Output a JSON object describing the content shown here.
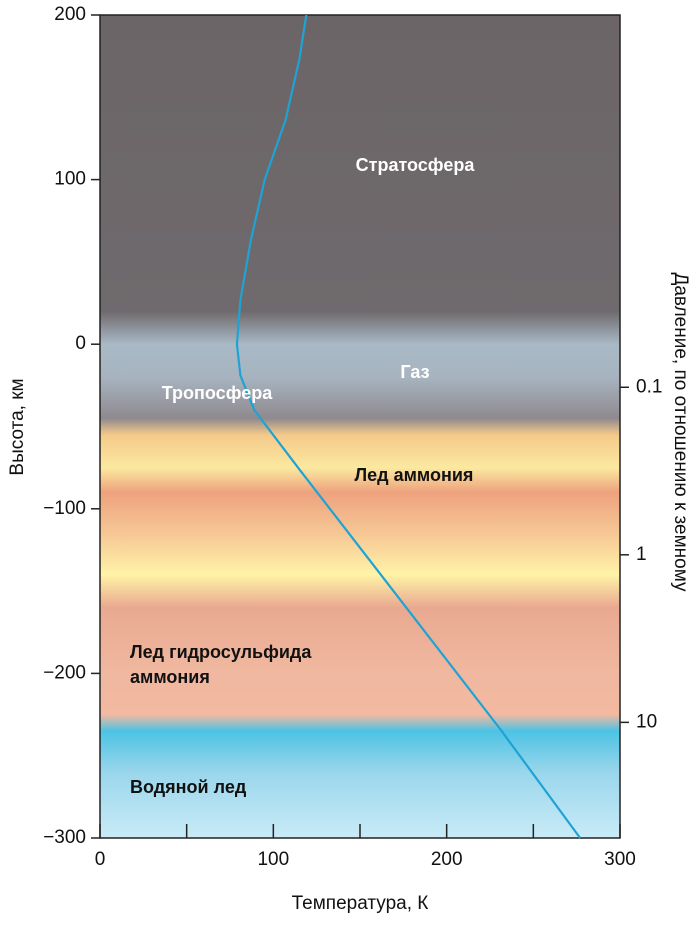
{
  "chart_data": {
    "type": "line",
    "xlabel": "Температура, К",
    "ylabel": "Высота, км",
    "y2label": "Давление, по отношению к земному",
    "x": [
      119,
      115,
      107,
      95,
      87,
      81,
      79,
      81,
      89,
      115,
      173,
      231,
      277
    ],
    "series": [
      {
        "color": "#1ea3d4",
        "values": [
          200,
          173,
          136,
          100,
          63,
          27,
          0,
          -19,
          -40,
          -76,
          -155,
          -234,
          -300
        ]
      }
    ],
    "xlim": [
      0,
      300
    ],
    "xticks": [
      0,
      100,
      200,
      300
    ],
    "xminorticks": [
      50,
      150,
      250
    ],
    "ylim": [
      -300,
      200
    ],
    "yticks": [
      200,
      100,
      0,
      {
        "value": -100,
        "label": "−100"
      },
      {
        "value": -200,
        "label": "−200"
      },
      {
        "value": -300,
        "label": "−300"
      }
    ],
    "y2lim": [
      49,
      0.0006
    ],
    "y2scale": "log",
    "y2ticks": [
      0.1,
      1,
      10
    ],
    "annotations": [
      "Стратосфера",
      "Газ",
      "Тропосфера",
      "Лед аммония",
      "Лед гидросульфида",
      "аммония",
      "Водяной лед"
    ]
  }
}
